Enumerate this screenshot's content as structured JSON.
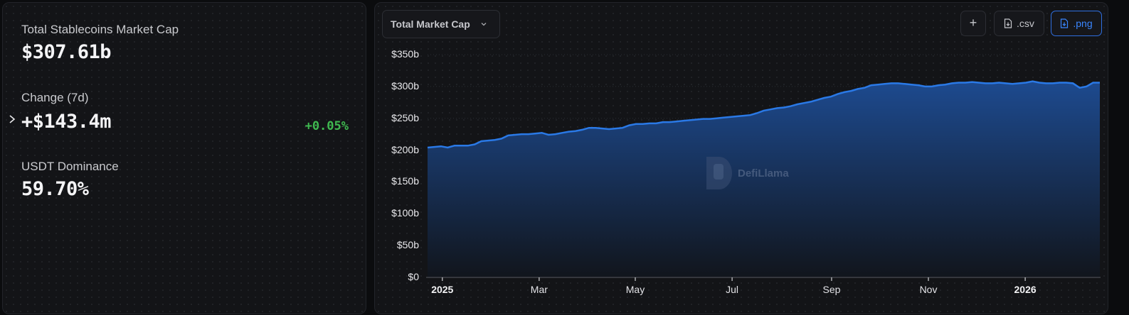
{
  "stats": {
    "market_cap": {
      "label": "Total Stablecoins Market Cap",
      "value": "$307.61b"
    },
    "change": {
      "label": "Change (7d)",
      "value": "+$143.4m",
      "percent": "+0.05%",
      "percent_color": "#3fb950"
    },
    "dominance": {
      "label": "USDT Dominance",
      "value": "59.70%"
    }
  },
  "toolbar": {
    "dropdown_label": "Total Market Cap",
    "add_label": "+",
    "csv_label": ".csv",
    "png_label": ".png"
  },
  "watermark": "DefiLlama",
  "colors": {
    "line": "#2a79e6",
    "area_top": "#1d4a8f",
    "area_bottom": "#11151c",
    "accent": "#3a86ff"
  },
  "chart_data": {
    "type": "area",
    "title": "Total Market Cap",
    "xlabel": "",
    "ylabel": "",
    "ylim": [
      0,
      350
    ],
    "y_ticks": [
      "$0",
      "$50b",
      "$100b",
      "$150b",
      "$200b",
      "$250b",
      "$300b",
      "$350b"
    ],
    "x_ticks": [
      {
        "label": "2025",
        "bold": true,
        "pos": 0.022
      },
      {
        "label": "Mar",
        "bold": false,
        "pos": 0.166
      },
      {
        "label": "May",
        "bold": false,
        "pos": 0.309
      },
      {
        "label": "Jul",
        "bold": false,
        "pos": 0.453
      },
      {
        "label": "Sep",
        "bold": false,
        "pos": 0.601
      },
      {
        "label": "Nov",
        "bold": false,
        "pos": 0.745
      },
      {
        "label": "2026",
        "bold": true,
        "pos": 0.889
      }
    ],
    "grid": true,
    "legend": "none",
    "series": [
      {
        "name": "Total Market Cap ($b)",
        "x": [
          0,
          0.01,
          0.02,
          0.03,
          0.04,
          0.05,
          0.06,
          0.07,
          0.08,
          0.09,
          0.1,
          0.11,
          0.12,
          0.13,
          0.14,
          0.15,
          0.16,
          0.17,
          0.18,
          0.19,
          0.2,
          0.21,
          0.22,
          0.23,
          0.24,
          0.25,
          0.26,
          0.27,
          0.28,
          0.29,
          0.3,
          0.31,
          0.32,
          0.33,
          0.34,
          0.35,
          0.36,
          0.37,
          0.38,
          0.39,
          0.4,
          0.41,
          0.42,
          0.43,
          0.44,
          0.45,
          0.46,
          0.47,
          0.48,
          0.49,
          0.5,
          0.51,
          0.52,
          0.53,
          0.54,
          0.55,
          0.56,
          0.57,
          0.58,
          0.59,
          0.6,
          0.61,
          0.62,
          0.63,
          0.64,
          0.65,
          0.66,
          0.67,
          0.68,
          0.69,
          0.7,
          0.71,
          0.72,
          0.73,
          0.74,
          0.75,
          0.76,
          0.77,
          0.78,
          0.79,
          0.8,
          0.81,
          0.82,
          0.83,
          0.84,
          0.85,
          0.86,
          0.87,
          0.88,
          0.89,
          0.9,
          0.91,
          0.92,
          0.93,
          0.94,
          0.95,
          0.96,
          0.97,
          0.98,
          0.99,
          1.0
        ],
        "values": [
          204,
          205,
          206,
          204,
          207,
          207,
          207,
          209,
          214,
          215,
          216,
          218,
          223,
          224,
          225,
          225,
          226,
          227,
          224,
          225,
          227,
          229,
          230,
          232,
          235,
          235,
          234,
          233,
          234,
          235,
          239,
          241,
          241,
          242,
          242,
          244,
          244,
          245,
          246,
          247,
          248,
          249,
          249,
          250,
          251,
          252,
          253,
          254,
          255,
          258,
          262,
          264,
          266,
          267,
          269,
          272,
          274,
          276,
          279,
          282,
          284,
          288,
          291,
          293,
          296,
          298,
          302,
          303,
          304,
          305,
          305,
          304,
          303,
          302,
          300,
          300,
          302,
          303,
          305,
          306,
          306,
          307,
          306,
          305,
          305,
          306,
          305,
          304,
          305,
          306,
          308,
          306,
          305,
          305,
          306,
          306,
          305,
          298,
          300,
          306,
          306
        ]
      }
    ]
  }
}
